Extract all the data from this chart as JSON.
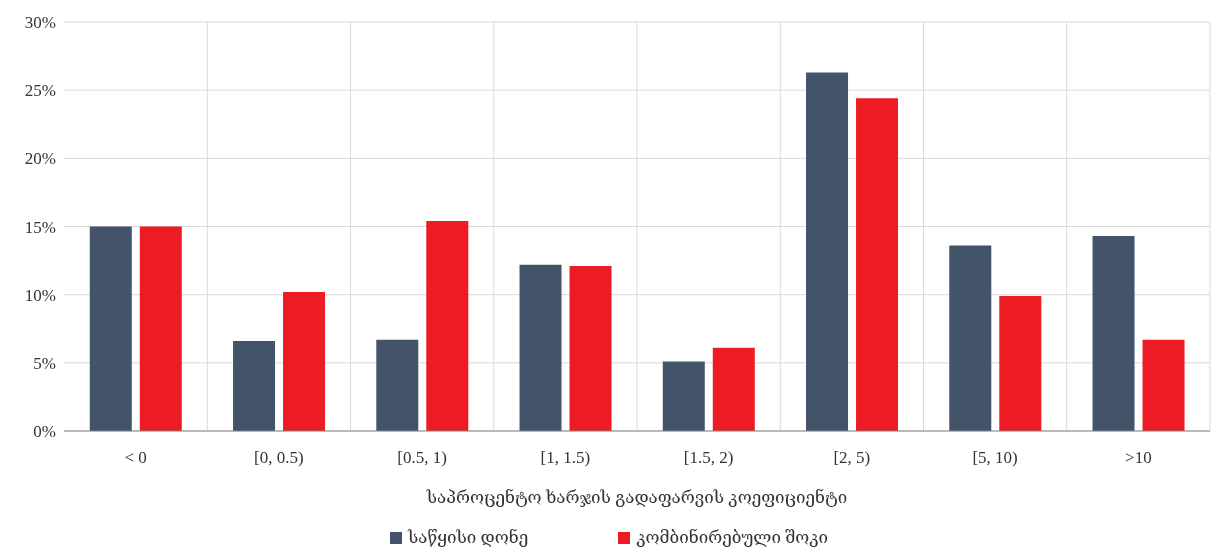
{
  "chart_data": {
    "type": "bar",
    "xlabel": "საპროცენტო ხარჯის გადაფარვის კოეფიციენტი",
    "categories": [
      "< 0",
      "[0, 0.5)",
      "[0.5, 1)",
      "[1, 1.5)",
      "[1.5, 2)",
      "[2, 5)",
      "[5, 10)",
      ">10"
    ],
    "series": [
      {
        "name": "საწყისი დონე",
        "color": "#435369",
        "values": [
          15.0,
          6.6,
          6.7,
          12.2,
          5.1,
          26.3,
          13.6,
          14.3
        ]
      },
      {
        "name": "კომბინირებული შოკი",
        "color": "#ed1c24",
        "values": [
          15.0,
          10.2,
          15.4,
          12.1,
          6.1,
          24.4,
          9.9,
          6.7
        ]
      }
    ],
    "ylim": [
      0,
      30
    ],
    "yticks": [
      {
        "value": 0,
        "label": "0%"
      },
      {
        "value": 5,
        "label": "5%"
      },
      {
        "value": 10,
        "label": "10%"
      },
      {
        "value": 15,
        "label": "15%"
      },
      {
        "value": 20,
        "label": "20%"
      },
      {
        "value": 25,
        "label": "25%"
      },
      {
        "value": 30,
        "label": "30%"
      }
    ],
    "grid": true,
    "legend": "bottom"
  }
}
